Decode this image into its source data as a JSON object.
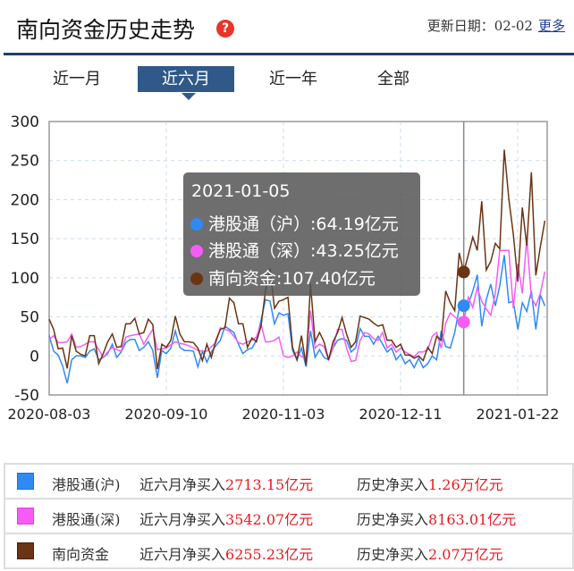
{
  "header": {
    "title": "南向资金历史走势",
    "help_icon": "question-bubble-icon",
    "update_label": "更新日期：",
    "update_date": "02-02",
    "more_link": "更多"
  },
  "tabs": [
    {
      "label": "近一月",
      "active": false
    },
    {
      "label": "近六月",
      "active": true
    },
    {
      "label": "近一年",
      "active": false
    },
    {
      "label": "全部",
      "active": false
    }
  ],
  "tooltip": {
    "date": "2021-01-05",
    "rows": [
      {
        "name": "港股通（沪）",
        "value": ":64.19亿元"
      },
      {
        "name": "港股通（深）",
        "value": ":43.25亿元"
      },
      {
        "name": "南向资金",
        "value": ":107.40亿元"
      }
    ]
  },
  "legend": [
    {
      "name": "港股通(沪)",
      "six_label": "近六月净买入",
      "six_value": "2713.15亿元",
      "hist_label": "历史净买入",
      "hist_value": "1.26万亿元",
      "color": "#2f8af5"
    },
    {
      "name": "港股通(深)",
      "six_label": "近六月净买入",
      "six_value": "3542.07亿元",
      "hist_label": "历史净买入",
      "hist_value": "8163.01亿元",
      "color": "#f55cf5"
    },
    {
      "name": "南向资金",
      "six_label": "近六月净买入",
      "six_value": "6255.23亿元",
      "hist_label": "历史净买入",
      "hist_value": "2.07万亿元",
      "color": "#6b3413"
    }
  ],
  "chart_data": {
    "type": "line",
    "ylim": [
      -50,
      300
    ],
    "yticks": [
      "300",
      "250",
      "200",
      "150",
      "100",
      "50",
      "0",
      "-50"
    ],
    "xtick_labels": [
      "2020-08-03",
      "2020-09-10",
      "2020-11-03",
      "2020-12-11",
      "2021-01-22"
    ],
    "grid": true,
    "highlight_date": "2021-01-05",
    "series": [
      {
        "name": "港股通（沪）",
        "color": "#2f8af5",
        "values": [
          26,
          6,
          1,
          -13,
          -35,
          -5,
          0,
          0,
          -2,
          6,
          9,
          -5,
          -2,
          3,
          15,
          -2,
          5,
          17,
          21,
          21,
          7,
          11,
          18,
          7,
          -28,
          7,
          3,
          10,
          32,
          11,
          7,
          7,
          6,
          -14,
          6,
          -8,
          5,
          13,
          20,
          38,
          34,
          30,
          15,
          3,
          8,
          10,
          20,
          45,
          72,
          70,
          41,
          55,
          52,
          54,
          7,
          -5,
          10,
          -14,
          32,
          -2,
          8,
          -2,
          -5,
          10,
          20,
          22,
          20,
          5,
          10,
          35,
          25,
          25,
          15,
          25,
          15,
          5,
          10,
          -5,
          2,
          -10,
          -5,
          -15,
          -3,
          -15,
          -10,
          0,
          -5,
          32,
          12,
          10,
          30,
          61,
          64.19,
          66,
          83,
          104,
          38,
          72,
          92,
          64,
          90,
          129,
          68,
          70,
          34,
          68,
          57,
          83,
          34,
          78,
          64
        ]
      },
      {
        "name": "港股通（深）",
        "color": "#f55cf5",
        "values": [
          21,
          26,
          17,
          17,
          18,
          28,
          11,
          12,
          15,
          18,
          18,
          8,
          -2,
          5,
          11,
          8,
          6,
          24,
          26,
          27,
          28,
          15,
          25,
          34,
          8,
          9,
          10,
          14,
          18,
          16,
          15,
          13,
          10,
          7,
          6,
          6,
          12,
          17,
          36,
          34,
          32,
          25,
          17,
          15,
          18,
          20,
          24,
          41,
          18,
          18,
          20,
          24,
          0,
          -2,
          0,
          5,
          -1,
          -3,
          58,
          10,
          15,
          12,
          -5,
          10,
          34,
          34,
          10,
          -7,
          -6,
          20,
          30,
          28,
          22,
          20,
          30,
          10,
          15,
          5,
          10,
          5,
          2,
          -1,
          5,
          5,
          8,
          25,
          30,
          10,
          42,
          55,
          50,
          45,
          43.25,
          75,
          62,
          87,
          70,
          60,
          52,
          80,
          135,
          135,
          135,
          61,
          118,
          80,
          150,
          75,
          64,
          80,
          108
        ]
      },
      {
        "name": "南向资金",
        "color": "#6b3413",
        "values": [
          47,
          34,
          9,
          10,
          -16,
          26,
          6,
          2,
          0,
          26,
          26,
          -10,
          3,
          18,
          28,
          11,
          12,
          41,
          41,
          48,
          28,
          30,
          47,
          40,
          -17,
          15,
          11,
          20,
          51,
          28,
          18,
          18,
          17,
          10,
          -6,
          15,
          -2,
          20,
          34,
          36,
          74,
          68,
          41,
          41,
          11,
          23,
          18,
          38,
          83,
          112,
          61,
          70,
          72,
          75,
          11,
          -5,
          26,
          -12,
          92,
          18,
          30,
          18,
          -5,
          18,
          30,
          49,
          28,
          11,
          18,
          51,
          49,
          47,
          42,
          38,
          40,
          20,
          20,
          11,
          15,
          1,
          1,
          -3,
          0,
          -6,
          11,
          3,
          25,
          20,
          83,
          68,
          58,
          132,
          107.4,
          129,
          152,
          135,
          198,
          110,
          121,
          144,
          137,
          264,
          201,
          156,
          95,
          190,
          141,
          235,
          103,
          140,
          173
        ]
      }
    ]
  }
}
